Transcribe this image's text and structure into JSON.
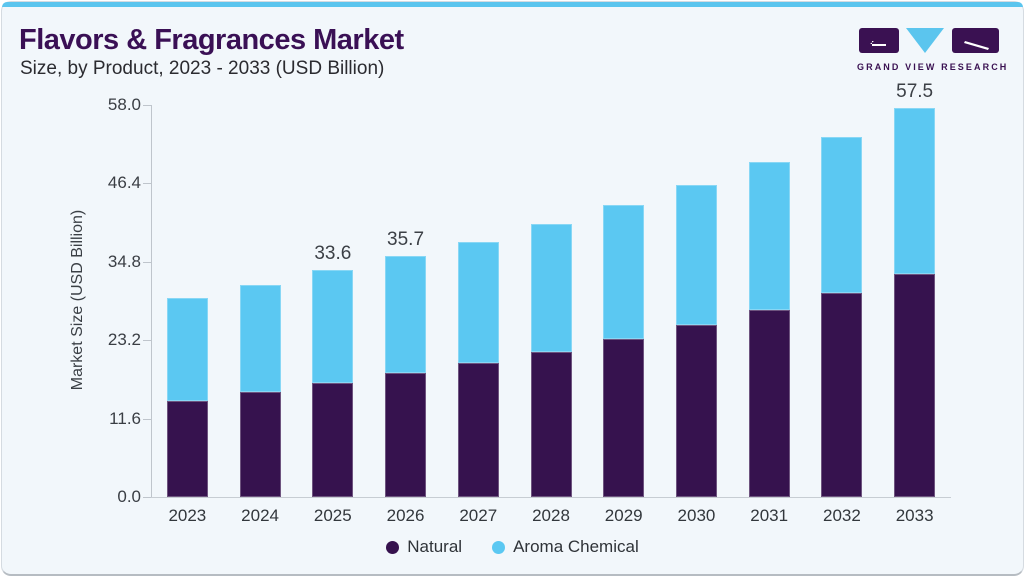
{
  "header": {
    "title": "Flavors & Fragrances Market",
    "subtitle": "Size, by Product, 2023 - 2033 (USD Billion)"
  },
  "logo": {
    "brand": "GRAND VIEW RESEARCH"
  },
  "chart_data": {
    "type": "bar",
    "stacked": true,
    "title": "Flavors & Fragrances Market Size, by Product, 2023 - 2033 (USD Billion)",
    "categories": [
      "2023",
      "2024",
      "2025",
      "2026",
      "2027",
      "2028",
      "2029",
      "2030",
      "2031",
      "2032",
      "2033"
    ],
    "series": [
      {
        "name": "Natural",
        "color": "#36124E",
        "values": [
          14.2,
          15.5,
          16.9,
          18.3,
          19.8,
          21.5,
          23.4,
          25.5,
          27.7,
          30.2,
          33.0
        ]
      },
      {
        "name": "Aroma Chemical",
        "color": "#5BC8F2",
        "values": [
          15.2,
          15.8,
          16.7,
          17.4,
          18.0,
          18.9,
          19.8,
          20.7,
          21.9,
          23.1,
          24.5
        ]
      }
    ],
    "totals": [
      29.4,
      31.3,
      33.6,
      35.7,
      37.8,
      40.4,
      43.2,
      46.2,
      49.6,
      53.3,
      57.5
    ],
    "bar_labels": [
      "",
      "",
      "33.6",
      "35.7",
      "",
      "",
      "",
      "",
      "",
      "",
      "57.5"
    ],
    "ylabel": "Market Size (USD Billion)",
    "ylim": [
      0,
      58
    ],
    "yticks": [
      "0.0",
      "11.6",
      "23.2",
      "34.8",
      "46.4",
      "58.0"
    ],
    "grid": false,
    "legend_position": "bottom"
  },
  "colors": {
    "accent_blue": "#5BC5EE",
    "card_background": "#F2F7FB",
    "title_purple": "#3A1055",
    "logo_purple": "#3A1152"
  }
}
